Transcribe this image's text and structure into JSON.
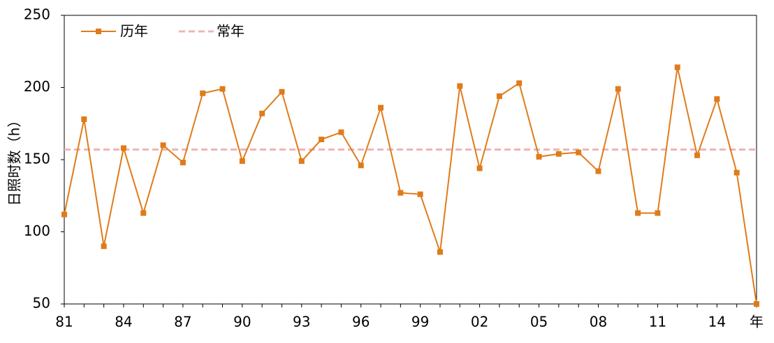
{
  "chart_data": {
    "type": "line",
    "y_label": "日照时数（h）",
    "categories": [
      "81",
      null,
      null,
      "84",
      null,
      null,
      "87",
      null,
      null,
      "90",
      null,
      null,
      "93",
      null,
      null,
      "96",
      null,
      null,
      "99",
      null,
      null,
      "02",
      null,
      null,
      "05",
      null,
      null,
      "08",
      null,
      null,
      "11",
      null,
      null,
      "14",
      null,
      "年"
    ],
    "series": [
      {
        "name": "历年",
        "color": "#e07b1a",
        "values": [
          112,
          178,
          90,
          158,
          113,
          160,
          148,
          196,
          199,
          149,
          182,
          197,
          149,
          164,
          169,
          146,
          186,
          127,
          126,
          86,
          201,
          144,
          194,
          203,
          152,
          154,
          155,
          142,
          199,
          113,
          113,
          214,
          153,
          192,
          141,
          50
        ]
      }
    ],
    "reference": {
      "name": "常年",
      "value": 157,
      "color": "#f0b4b4"
    },
    "ylim": [
      50,
      250
    ],
    "yticks": [
      50,
      100,
      150,
      200,
      250
    ],
    "grid": false
  }
}
